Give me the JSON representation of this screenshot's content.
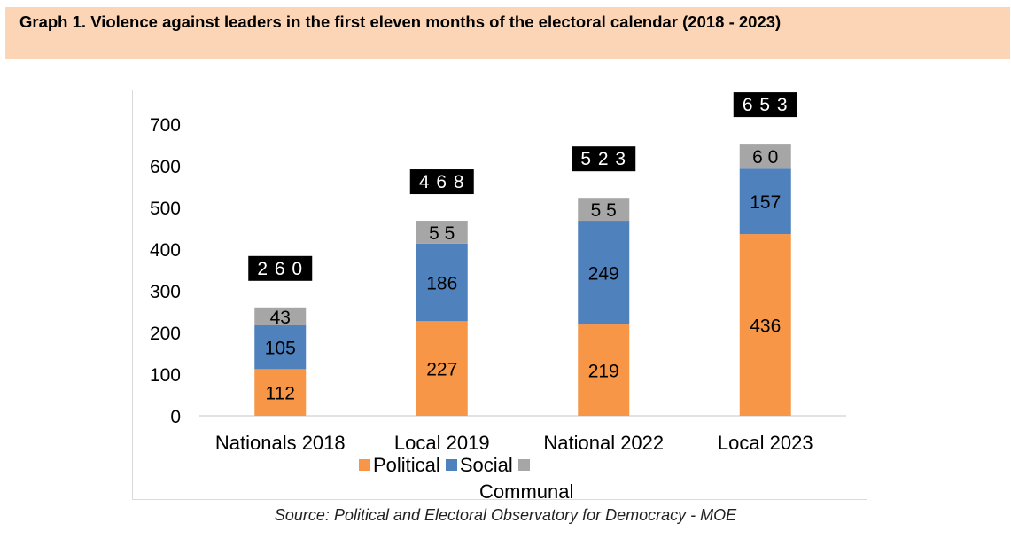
{
  "header": {
    "title": "Graph 1. Violence against leaders in the first eleven months of the electoral calendar (2018 - 2023)"
  },
  "source": "Source: Political and Electoral Observatory for Democracy - MOE",
  "colors": {
    "political": "#f79646",
    "social": "#4f81bd",
    "communal": "#a6a6a6",
    "total_box": "#000000",
    "header_bg": "#fbd5b5"
  },
  "chart_data": {
    "type": "bar",
    "stacked": true,
    "categories": [
      "Nationals 2018",
      "Local 2019",
      "National 2022",
      "Local 2023"
    ],
    "series": [
      {
        "name": "Political",
        "values": [
          112,
          227,
          219,
          436
        ]
      },
      {
        "name": "Social",
        "values": [
          105,
          186,
          249,
          157
        ]
      },
      {
        "name": "Communal",
        "values": [
          43,
          55,
          55,
          60
        ]
      }
    ],
    "value_labels": {
      "Political": [
        "112",
        "227",
        "219",
        "436"
      ],
      "Social": [
        "105",
        "186",
        "249",
        "157"
      ],
      "Communal": [
        "43",
        "5 5",
        "5 5",
        "6 0"
      ]
    },
    "totals": [
      260,
      468,
      523,
      653
    ],
    "total_labels": [
      "2 6 0",
      "4 6 8",
      "5 2 3",
      "6 5 3"
    ],
    "yticks": [
      "0",
      "100",
      "200",
      "300",
      "400",
      "500",
      "600",
      "700"
    ],
    "ylim": [
      0,
      700
    ],
    "grid": false,
    "legend_position": "bottom",
    "legend": {
      "items": [
        "Political",
        "Social",
        ""
      ],
      "communal_label": "Communal"
    }
  }
}
